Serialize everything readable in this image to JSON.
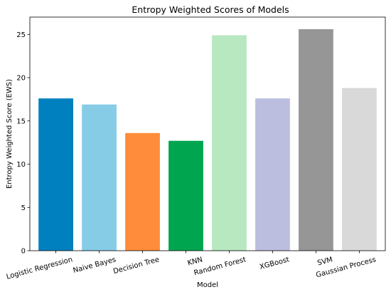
{
  "chart_data": {
    "type": "bar",
    "title": "Entropy Weighted Scores of Models",
    "xlabel": "Model",
    "ylabel": "Entropy Weighted Score (EWS)",
    "categories": [
      "Logistic Regression",
      "Naive Bayes",
      "Decision Tree",
      "KNN",
      "Random Forest",
      "XGBoost",
      "SVM",
      "Gaussian Process"
    ],
    "values": [
      17.6,
      16.9,
      13.6,
      12.7,
      24.9,
      17.6,
      25.6,
      18.8
    ],
    "colors": [
      "#0080bf",
      "#87cce6",
      "#ff8c3a",
      "#00a550",
      "#b8e8c0",
      "#bcbee0",
      "#969696",
      "#d9d9d9"
    ],
    "ylim": [
      0,
      27
    ],
    "yticks": [
      0,
      5,
      10,
      15,
      20,
      25
    ],
    "grid": false,
    "xtick_rotation": -15
  }
}
